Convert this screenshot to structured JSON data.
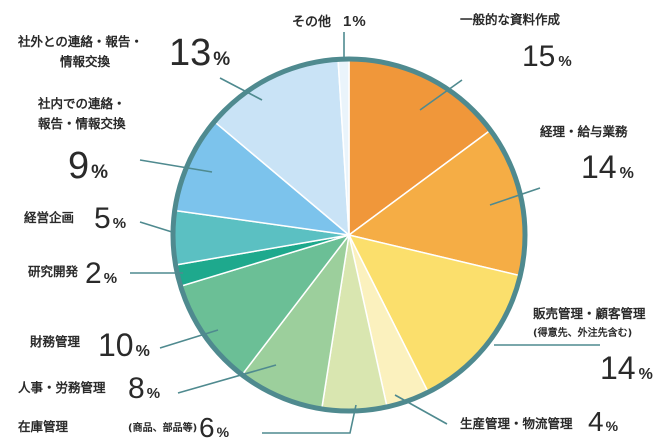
{
  "chart_data": {
    "type": "pie",
    "start_angle_deg": 0,
    "direction": "clockwise",
    "legend": "none",
    "percent_suffix": "%",
    "outline_color": "#4f8a8f",
    "slices": [
      {
        "name": "一般的な資料作成",
        "value": 15,
        "color": "#f0973a"
      },
      {
        "name": "経理・給与業務",
        "value": 14,
        "color": "#f5ad45"
      },
      {
        "name": "販売管理・顧客管理",
        "sublabel": "(得意先、外注先含む)",
        "value": 14,
        "color": "#fbdf6c"
      },
      {
        "name": "生産管理・物流管理",
        "value": 4,
        "color": "#fbf1be"
      },
      {
        "name": "在庫管理",
        "sublabel": "(商品、部品等)",
        "value": 6,
        "color": "#d9e6b0"
      },
      {
        "name": "人事・労務管理",
        "value": 8,
        "color": "#9ccf9c"
      },
      {
        "name": "財務管理",
        "value": 10,
        "color": "#6bbf96"
      },
      {
        "name": "研究開発",
        "value": 2,
        "color": "#1ea98d"
      },
      {
        "name": "経営企画",
        "value": 5,
        "color": "#5bc0c2"
      },
      {
        "name": "社内での連絡・報告・情報交換",
        "value": 9,
        "color": "#7cc3ec"
      },
      {
        "name": "社外との連絡・報告・情報交換",
        "value": 13,
        "color": "#c9e3f6"
      },
      {
        "name": "その他",
        "value": 1,
        "color": "#eaf4fb"
      }
    ]
  }
}
